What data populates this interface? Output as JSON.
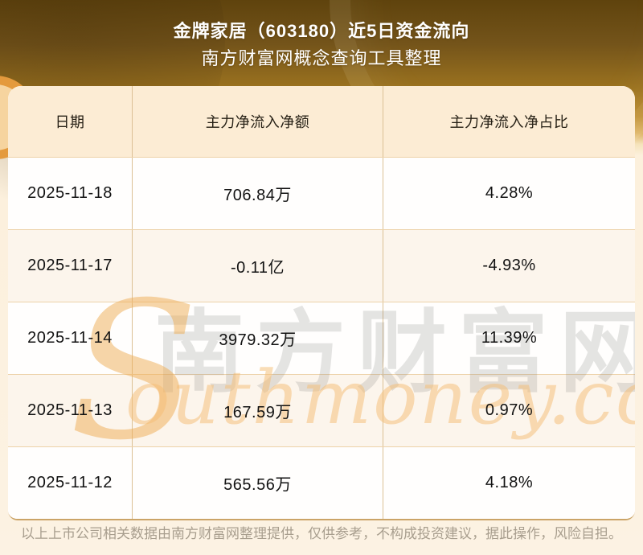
{
  "header": {
    "title": "金牌家居（603180）近5日资金流向",
    "subtitle": "南方财富网概念查询工具整理"
  },
  "table": {
    "columns": [
      "日期",
      "主力净流入净额",
      "主力净流入净占比"
    ],
    "rows": [
      {
        "date": "2025-11-18",
        "amount": "706.84万",
        "ratio": "4.28%"
      },
      {
        "date": "2025-11-17",
        "amount": "-0.11亿",
        "ratio": "-4.93%"
      },
      {
        "date": "2025-11-14",
        "amount": "3979.32万",
        "ratio": "11.39%"
      },
      {
        "date": "2025-11-13",
        "amount": "167.59万",
        "ratio": "0.97%"
      },
      {
        "date": "2025-11-12",
        "amount": "565.56万",
        "ratio": "4.18%"
      }
    ]
  },
  "watermark": {
    "cn": "南方财富网",
    "s": "S",
    "en": "outhmoney.com"
  },
  "footer": {
    "disclaimer": "以上上市公司相关数据由南方财富网整理提供，仅供参考，不构成投资建议，据此操作，风险自担。"
  },
  "colors": {
    "hero_gradient_top": "#5f430d",
    "hero_gradient_bottom": "#c79c42",
    "page_cream": "#fcf2e3",
    "table_header_bg": "#fcecd4",
    "row_alt_bg": "#fcf5ec",
    "divider": "#dcc094",
    "row_divider": "#edd2a9",
    "bottom_accent": "#cba467",
    "title_text": "#ffffff",
    "cell_text": "#121212",
    "footer_text": "#a89e8e",
    "watermark_orange": "#f5bd74",
    "watermark_gray": "#7e7e7a"
  },
  "chart_data": {
    "type": "table",
    "title": "金牌家居（603180）近5日资金流向",
    "subtitle": "南方财富网概念查询工具整理",
    "columns": [
      "日期",
      "主力净流入净额",
      "主力净流入净占比"
    ],
    "rows": [
      [
        "2025-11-18",
        "706.84万",
        "4.28%"
      ],
      [
        "2025-11-17",
        "-0.11亿",
        "-4.93%"
      ],
      [
        "2025-11-14",
        "3979.32万",
        "11.39%"
      ],
      [
        "2025-11-13",
        "167.59万",
        "0.97%"
      ],
      [
        "2025-11-12",
        "565.56万",
        "4.18%"
      ]
    ],
    "numeric": {
      "dates": [
        "2025-11-18",
        "2025-11-17",
        "2025-11-14",
        "2025-11-13",
        "2025-11-12"
      ],
      "net_inflow_wan": [
        706.84,
        -1100,
        3979.32,
        167.59,
        565.56
      ],
      "net_inflow_pct": [
        4.28,
        -4.93,
        11.39,
        0.97,
        4.18
      ]
    }
  }
}
